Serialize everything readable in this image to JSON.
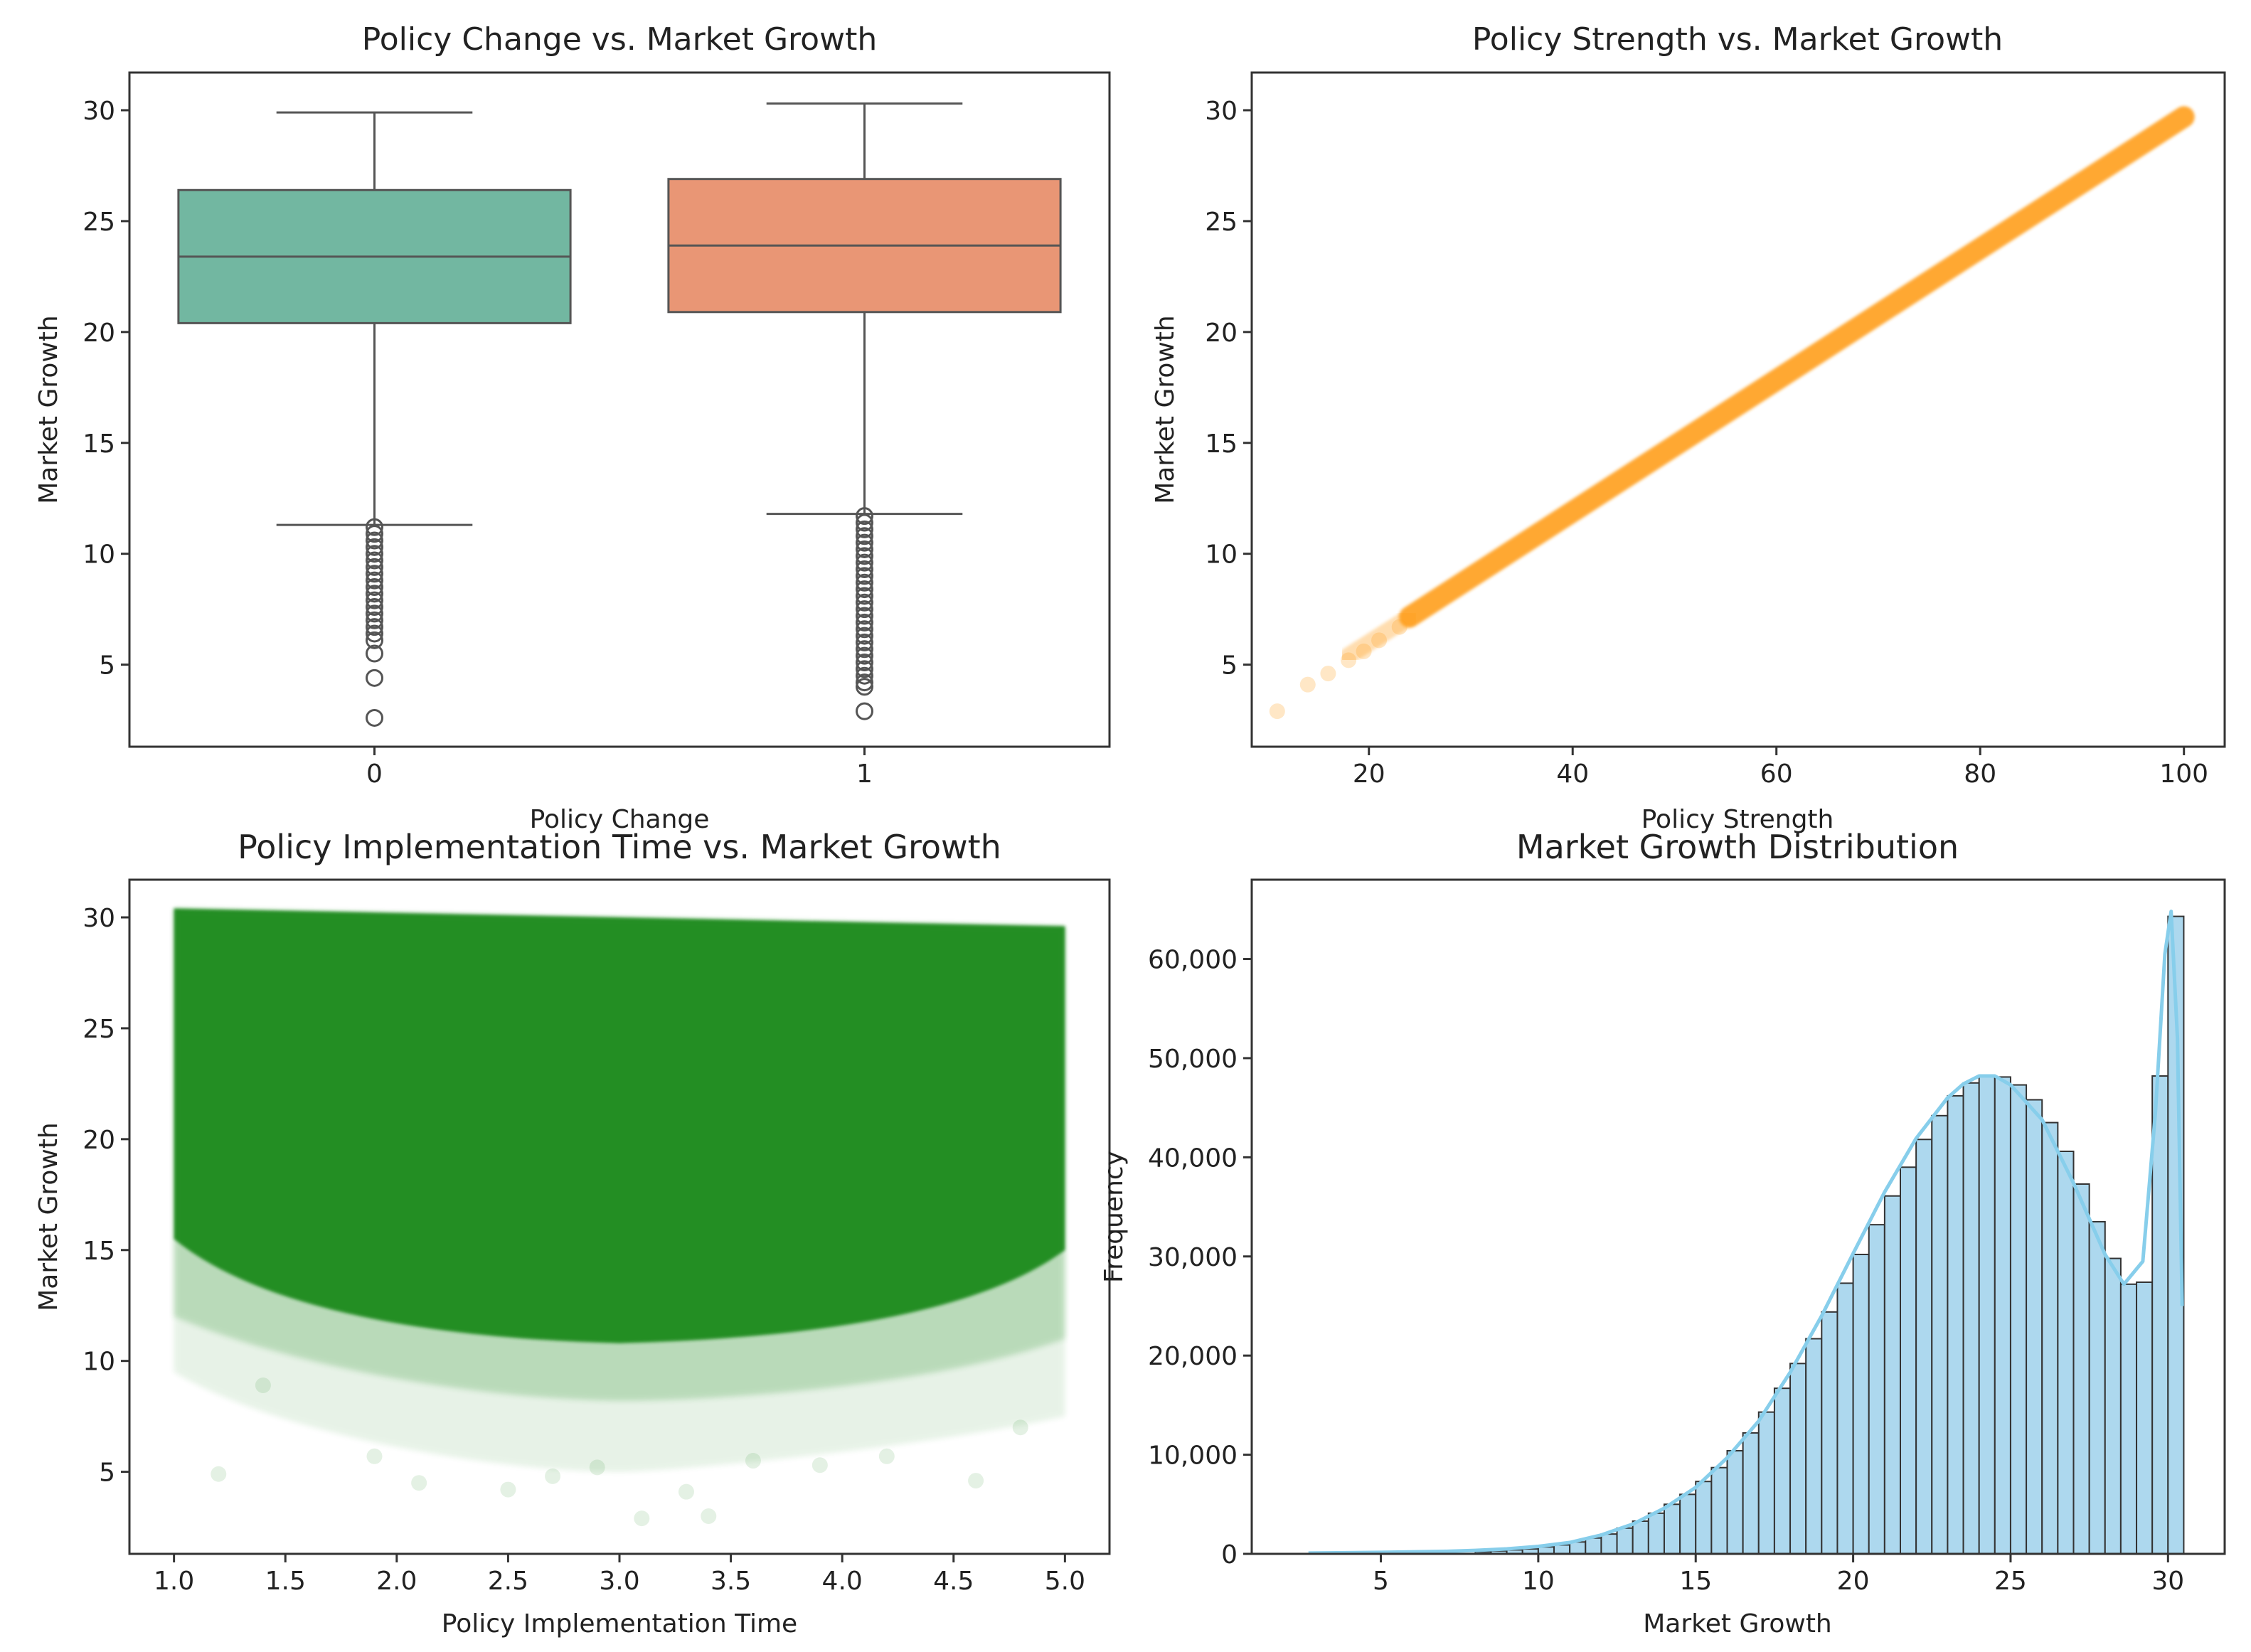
{
  "chart_data": [
    {
      "type": "box",
      "title": "Policy Change vs. Market Growth",
      "xlabel": "Policy Change",
      "ylabel": "Market Growth",
      "categories": [
        "0",
        "1"
      ],
      "colors": [
        "#72b7a1",
        "#e99675"
      ],
      "ylim": [
        1.3,
        31.7
      ],
      "yticks": [
        5,
        10,
        15,
        20,
        25,
        30
      ],
      "boxes": [
        {
          "label": "0",
          "whisker_low": 11.3,
          "q1": 20.4,
          "median": 23.4,
          "q3": 26.4,
          "whisker_high": 29.9,
          "outliers": [
            11.2,
            10.9,
            10.6,
            10.3,
            10.0,
            9.7,
            9.4,
            9.1,
            8.8,
            8.5,
            8.2,
            7.9,
            7.6,
            7.3,
            7.0,
            6.7,
            6.4,
            6.1,
            5.5,
            4.4,
            2.6
          ]
        },
        {
          "label": "1",
          "whisker_low": 11.8,
          "q1": 20.9,
          "median": 23.9,
          "q3": 26.9,
          "whisker_high": 30.3,
          "outliers": [
            11.7,
            11.4,
            11.1,
            10.8,
            10.5,
            10.2,
            9.9,
            9.6,
            9.3,
            9.0,
            8.7,
            8.4,
            8.1,
            7.8,
            7.5,
            7.2,
            6.9,
            6.6,
            6.3,
            6.0,
            5.7,
            5.4,
            5.1,
            4.8,
            4.5,
            4.2,
            4.0,
            2.9
          ]
        }
      ]
    },
    {
      "type": "scatter",
      "title": "Policy Strength vs. Market Growth",
      "xlabel": "Policy Strength",
      "ylabel": "Market Growth",
      "color": "#ff9f1c",
      "xlim": [
        8.5,
        104
      ],
      "ylim": [
        1.3,
        31.7
      ],
      "xticks": [
        20,
        40,
        60,
        80,
        100
      ],
      "yticks": [
        5,
        10,
        15,
        20,
        25,
        30
      ],
      "trend": {
        "x": [
          10,
          100
        ],
        "y": [
          3.0,
          29.7
        ]
      },
      "sparse_points": [
        [
          11,
          2.9
        ],
        [
          14,
          4.1
        ],
        [
          16,
          4.6
        ],
        [
          18,
          5.2
        ],
        [
          19.5,
          5.6
        ],
        [
          21,
          6.1
        ],
        [
          23,
          6.7
        ]
      ]
    },
    {
      "type": "scatter",
      "title": "Policy Implementation Time vs. Market Growth",
      "xlabel": "Policy Implementation Time",
      "ylabel": "Market Growth",
      "color": "#1f8a1f",
      "xlim": [
        0.8,
        5.2
      ],
      "ylim": [
        1.3,
        31.7
      ],
      "xticks": [
        1.0,
        1.5,
        2.0,
        2.5,
        3.0,
        3.5,
        4.0,
        4.5,
        5.0
      ],
      "yticks": [
        5,
        10,
        15,
        20,
        25,
        30
      ],
      "band": {
        "x_min": 1.0,
        "x_max": 5.0,
        "upper_left": 30.4,
        "upper_right": 29.6
      },
      "sparse_points": [
        [
          1.2,
          4.9
        ],
        [
          1.4,
          8.9
        ],
        [
          1.9,
          5.7
        ],
        [
          2.1,
          4.5
        ],
        [
          2.5,
          4.2
        ],
        [
          2.7,
          4.8
        ],
        [
          2.9,
          5.2
        ],
        [
          3.1,
          2.9
        ],
        [
          3.3,
          4.1
        ],
        [
          3.4,
          3.0
        ],
        [
          3.6,
          5.5
        ],
        [
          3.9,
          5.3
        ],
        [
          4.2,
          5.7
        ],
        [
          4.6,
          4.6
        ],
        [
          4.8,
          7.0
        ]
      ]
    },
    {
      "type": "histogram",
      "title": "Market Growth Distribution",
      "xlabel": "Market Growth",
      "ylabel": "Frequency",
      "bar_color": "#add8ee",
      "line_color": "#87ceeb",
      "xlim": [
        0.9,
        31.8
      ],
      "ylim": [
        0,
        68000
      ],
      "xticks": [
        5,
        10,
        15,
        20,
        25,
        30
      ],
      "yticks": [
        0,
        10000,
        20000,
        30000,
        40000,
        50000,
        60000
      ],
      "ytick_labels": [
        "0",
        "10,000",
        "20,000",
        "30,000",
        "40,000",
        "50,000",
        "60,000"
      ],
      "bins": [
        {
          "x0": 8.0,
          "x1": 8.5,
          "count": 200
        },
        {
          "x0": 8.5,
          "x1": 9.0,
          "count": 300
        },
        {
          "x0": 9.0,
          "x1": 9.5,
          "count": 400
        },
        {
          "x0": 9.5,
          "x1": 10.0,
          "count": 500
        },
        {
          "x0": 10.0,
          "x1": 10.5,
          "count": 700
        },
        {
          "x0": 10.5,
          "x1": 11.0,
          "count": 900
        },
        {
          "x0": 11.0,
          "x1": 11.5,
          "count": 1200
        },
        {
          "x0": 11.5,
          "x1": 12.0,
          "count": 1600
        },
        {
          "x0": 12.0,
          "x1": 12.5,
          "count": 2000
        },
        {
          "x0": 12.5,
          "x1": 13.0,
          "count": 2600
        },
        {
          "x0": 13.0,
          "x1": 13.5,
          "count": 3300
        },
        {
          "x0": 13.5,
          "x1": 14.0,
          "count": 4100
        },
        {
          "x0": 14.0,
          "x1": 14.5,
          "count": 5000
        },
        {
          "x0": 14.5,
          "x1": 15.0,
          "count": 6000
        },
        {
          "x0": 15.0,
          "x1": 15.5,
          "count": 7300
        },
        {
          "x0": 15.5,
          "x1": 16.0,
          "count": 8700
        },
        {
          "x0": 16.0,
          "x1": 16.5,
          "count": 10400
        },
        {
          "x0": 16.5,
          "x1": 17.0,
          "count": 12200
        },
        {
          "x0": 17.0,
          "x1": 17.5,
          "count": 14300
        },
        {
          "x0": 17.5,
          "x1": 18.0,
          "count": 16700
        },
        {
          "x0": 18.0,
          "x1": 18.5,
          "count": 19200
        },
        {
          "x0": 18.5,
          "x1": 19.0,
          "count": 21700
        },
        {
          "x0": 19.0,
          "x1": 19.5,
          "count": 24400
        },
        {
          "x0": 19.5,
          "x1": 20.0,
          "count": 27300
        },
        {
          "x0": 20.0,
          "x1": 20.5,
          "count": 30200
        },
        {
          "x0": 20.5,
          "x1": 21.0,
          "count": 33200
        },
        {
          "x0": 21.0,
          "x1": 21.5,
          "count": 36100
        },
        {
          "x0": 21.5,
          "x1": 22.0,
          "count": 39000
        },
        {
          "x0": 22.0,
          "x1": 22.5,
          "count": 41800
        },
        {
          "x0": 22.5,
          "x1": 23.0,
          "count": 44200
        },
        {
          "x0": 23.0,
          "x1": 23.5,
          "count": 46200
        },
        {
          "x0": 23.5,
          "x1": 24.0,
          "count": 47500
        },
        {
          "x0": 24.0,
          "x1": 24.5,
          "count": 48200
        },
        {
          "x0": 24.5,
          "x1": 25.0,
          "count": 48100
        },
        {
          "x0": 25.0,
          "x1": 25.5,
          "count": 47300
        },
        {
          "x0": 25.5,
          "x1": 26.0,
          "count": 45800
        },
        {
          "x0": 26.0,
          "x1": 26.5,
          "count": 43500
        },
        {
          "x0": 26.5,
          "x1": 27.0,
          "count": 40600
        },
        {
          "x0": 27.0,
          "x1": 27.5,
          "count": 37300
        },
        {
          "x0": 27.5,
          "x1": 28.0,
          "count": 33500
        },
        {
          "x0": 28.0,
          "x1": 28.5,
          "count": 29800
        },
        {
          "x0": 28.5,
          "x1": 29.0,
          "count": 27200
        },
        {
          "x0": 29.0,
          "x1": 29.5,
          "count": 27400
        },
        {
          "x0": 29.5,
          "x1": 30.0,
          "count": 48200
        },
        {
          "x0": 30.0,
          "x1": 30.5,
          "count": 64300
        }
      ],
      "kde": [
        [
          2.7,
          80
        ],
        [
          5,
          150
        ],
        [
          7,
          250
        ],
        [
          8,
          350
        ],
        [
          9,
          500
        ],
        [
          10,
          750
        ],
        [
          11,
          1150
        ],
        [
          12,
          1900
        ],
        [
          13,
          3000
        ],
        [
          14,
          4600
        ],
        [
          15,
          6700
        ],
        [
          16,
          9700
        ],
        [
          17,
          13400
        ],
        [
          18,
          18300
        ],
        [
          19,
          24000
        ],
        [
          20,
          30300
        ],
        [
          21,
          36500
        ],
        [
          22,
          41900
        ],
        [
          23,
          46000
        ],
        [
          23.5,
          47400
        ],
        [
          24,
          48200
        ],
        [
          24.5,
          48200
        ],
        [
          25,
          47300
        ],
        [
          26,
          43800
        ],
        [
          27,
          37400
        ],
        [
          28,
          30200
        ],
        [
          28.6,
          27200
        ],
        [
          29.2,
          29500
        ],
        [
          29.6,
          44500
        ],
        [
          29.9,
          60500
        ],
        [
          30.1,
          64800
        ],
        [
          30.3,
          52000
        ],
        [
          30.45,
          25000
        ]
      ]
    }
  ]
}
